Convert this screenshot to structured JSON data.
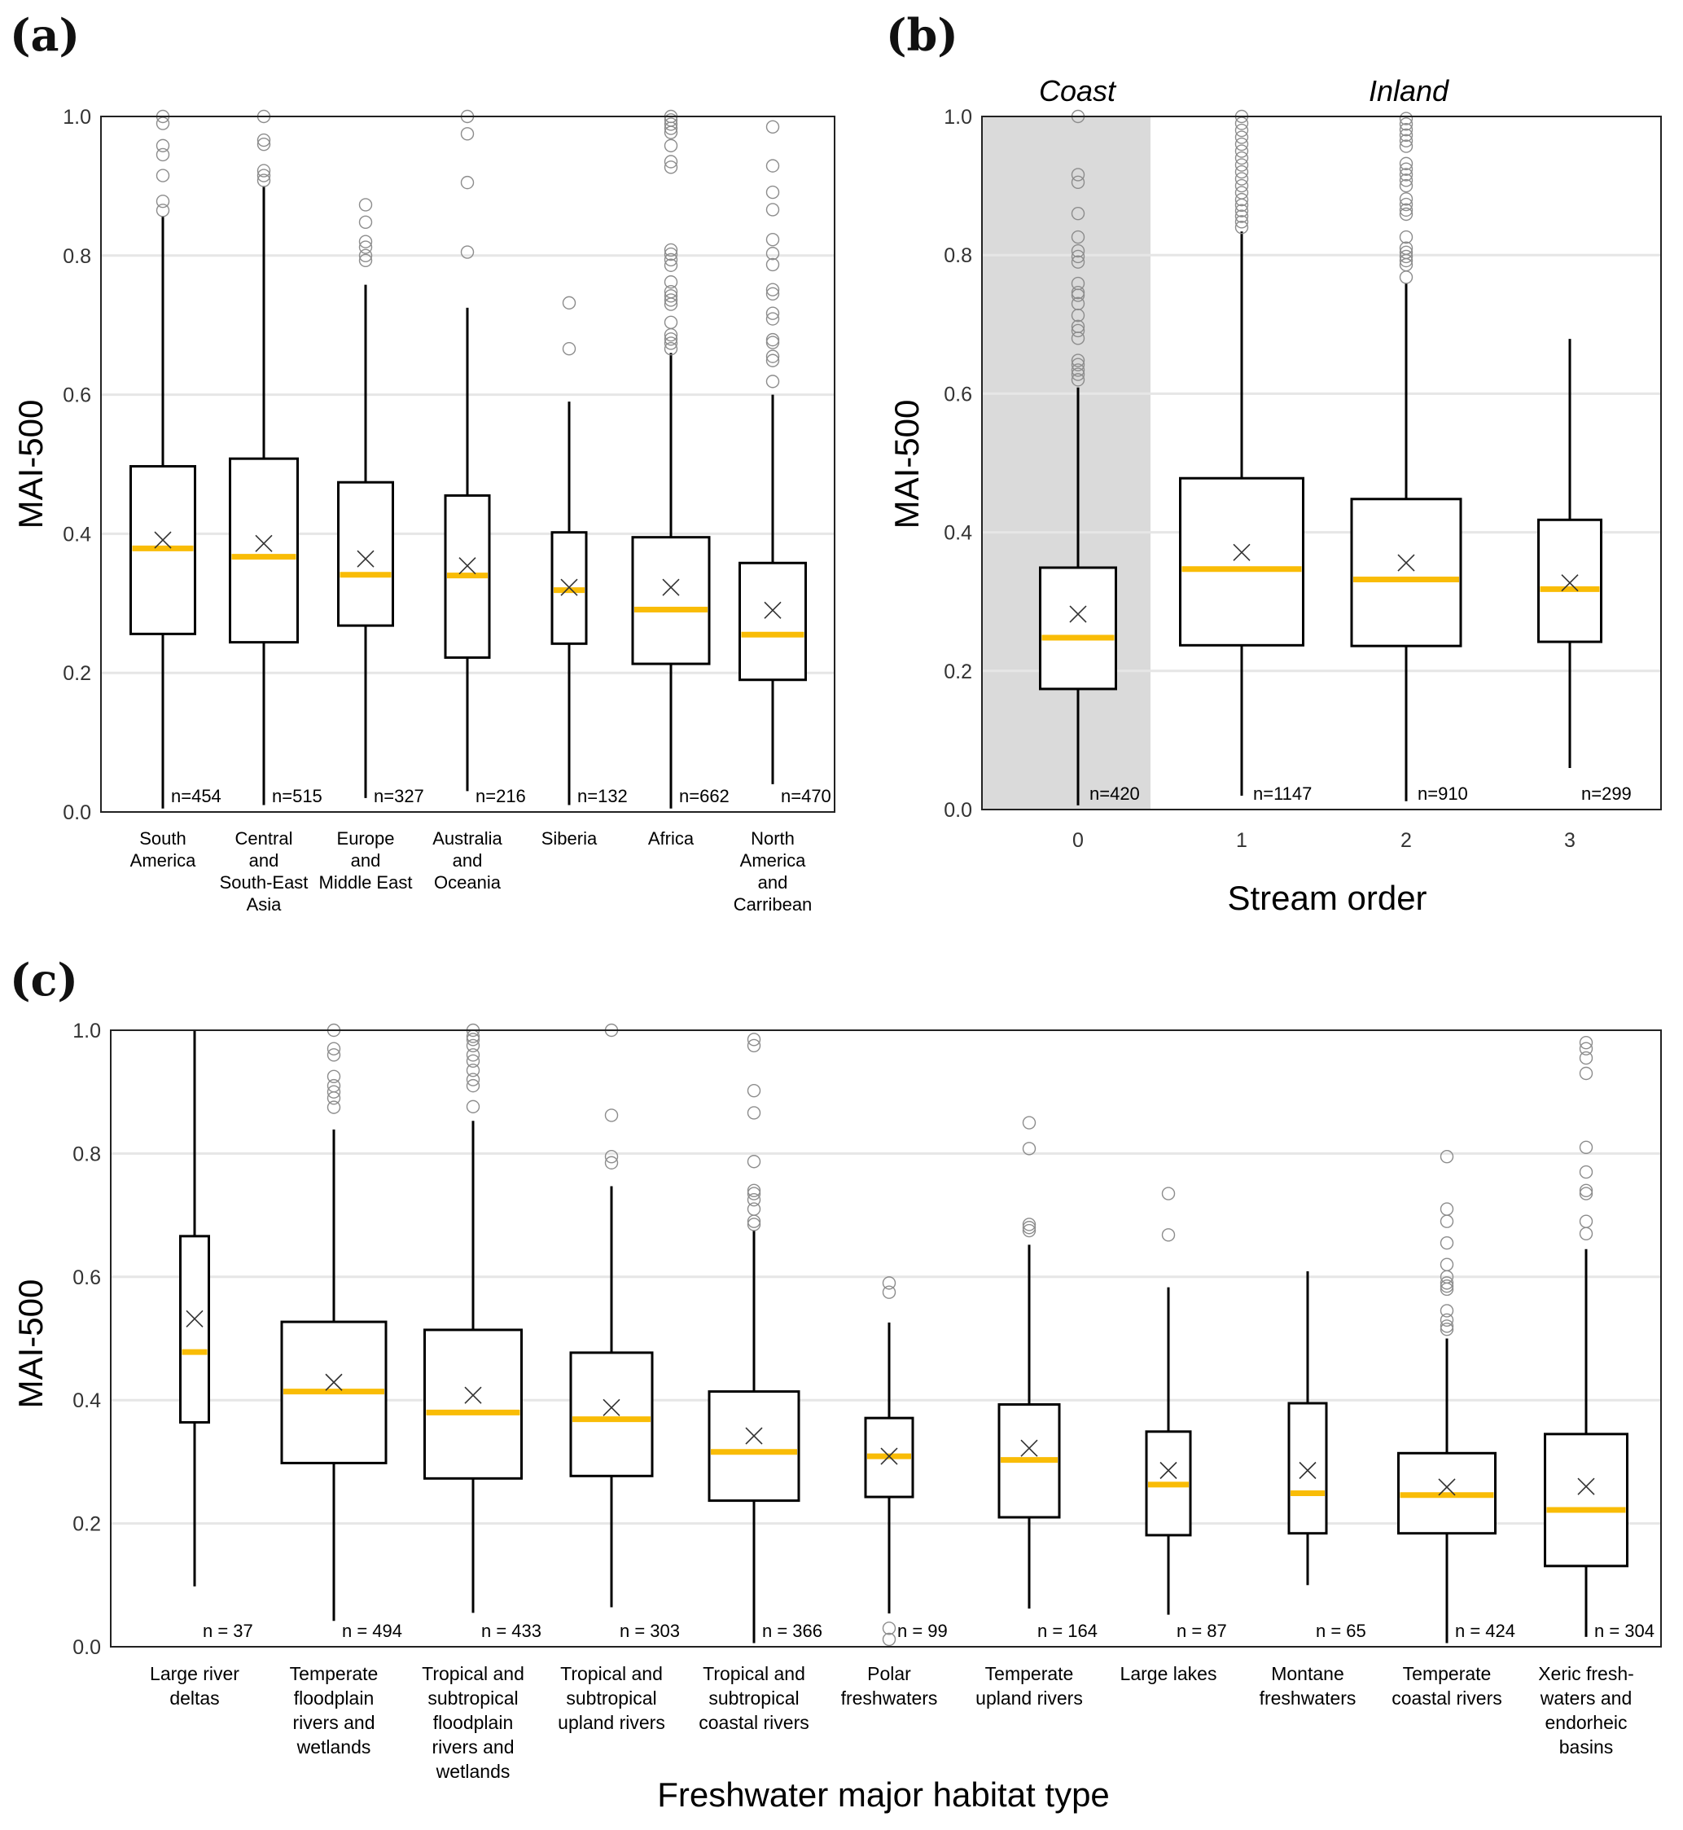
{
  "colors": {
    "median": "#F9BC06",
    "box": "#000000",
    "outlier": "#8c8c8c",
    "grid": "#e6e6e6",
    "coast_shade": "#dadada",
    "mean_marker": "#333333"
  },
  "chart_data": [
    {
      "panel": "(a)",
      "type": "box",
      "title": "",
      "ylabel": "MAI-500",
      "xlabel": "",
      "ylim": [
        0,
        1.0
      ],
      "yticks": [
        "0.0",
        "0.2",
        "0.4",
        "0.6",
        "0.8",
        "1.0"
      ],
      "grid": "horizontal",
      "categories": [
        {
          "label": [
            "South",
            "America"
          ],
          "n": "n=454",
          "q1": 0.256,
          "median": 0.379,
          "q3": 0.497,
          "mean": 0.391,
          "whisker_low": 0.005,
          "whisker_high": 0.857,
          "outliers": [
            0.865,
            0.878,
            0.915,
            0.945,
            0.958,
            0.99,
            1.0
          ]
        },
        {
          "label": [
            "Central",
            "and",
            "South-East",
            "Asia"
          ],
          "n": "n=515",
          "q1": 0.244,
          "median": 0.367,
          "q3": 0.508,
          "mean": 0.386,
          "whisker_low": 0.01,
          "whisker_high": 0.9,
          "outliers": [
            0.908,
            0.915,
            0.922,
            0.96,
            0.966,
            1.0
          ]
        },
        {
          "label": [
            "Europe",
            "and",
            "Middle East"
          ],
          "n": "n=327",
          "q1": 0.268,
          "median": 0.341,
          "q3": 0.474,
          "mean": 0.364,
          "whisker_low": 0.02,
          "whisker_high": 0.758,
          "outliers": [
            0.793,
            0.8,
            0.812,
            0.82,
            0.848,
            0.873
          ]
        },
        {
          "label": [
            "Australia",
            "and",
            "Oceania"
          ],
          "n": "n=216",
          "q1": 0.222,
          "median": 0.34,
          "q3": 0.455,
          "mean": 0.354,
          "whisker_low": 0.03,
          "whisker_high": 0.725,
          "outliers": [
            0.805,
            0.905,
            0.975,
            1.0
          ]
        },
        {
          "label": [
            "Siberia"
          ],
          "n": "n=132",
          "q1": 0.242,
          "median": 0.319,
          "q3": 0.402,
          "mean": 0.323,
          "whisker_low": 0.01,
          "whisker_high": 0.59,
          "outliers": [
            0.666,
            0.732
          ]
        },
        {
          "label": [
            "Africa"
          ],
          "n": "n=662",
          "q1": 0.213,
          "median": 0.291,
          "q3": 0.395,
          "mean": 0.323,
          "whisker_low": 0.005,
          "whisker_high": 0.66,
          "outliers": [
            0.666,
            0.674,
            0.68,
            0.686,
            0.704,
            0.73,
            0.736,
            0.742,
            0.748,
            0.762,
            0.786,
            0.794,
            0.802,
            0.808,
            0.927,
            0.935,
            0.958,
            0.977,
            0.983,
            0.989,
            0.995,
            1.0
          ]
        },
        {
          "label": [
            "North",
            "America",
            "and",
            "Carribean"
          ],
          "n": "n=470",
          "q1": 0.19,
          "median": 0.255,
          "q3": 0.358,
          "mean": 0.29,
          "whisker_low": 0.04,
          "whisker_high": 0.6,
          "outliers": [
            0.619,
            0.649,
            0.655,
            0.675,
            0.679,
            0.709,
            0.717,
            0.745,
            0.751,
            0.787,
            0.803,
            0.823,
            0.866,
            0.891,
            0.929,
            0.985
          ]
        }
      ]
    },
    {
      "panel": "(b)",
      "type": "box",
      "title": "",
      "ylabel": "MAI-500",
      "xlabel": "Stream order",
      "ylim": [
        0,
        1.0
      ],
      "yticks": [
        "0.0",
        "0.2",
        "0.4",
        "0.6",
        "0.8",
        "1.0"
      ],
      "grid": "horizontal",
      "annotations": {
        "shaded_region_label": "Coast",
        "unshaded_region_label": "Inland",
        "shaded_categories": [
          "0"
        ]
      },
      "categories": [
        {
          "label": [
            "0"
          ],
          "n": "n=420",
          "q1": 0.174,
          "median": 0.248,
          "q3": 0.349,
          "mean": 0.282,
          "whisker_low": 0.006,
          "whisker_high": 0.609,
          "outliers": [
            0.62,
            0.628,
            0.634,
            0.642,
            0.648,
            0.68,
            0.691,
            0.697,
            0.713,
            0.73,
            0.742,
            0.746,
            0.759,
            0.79,
            0.798,
            0.806,
            0.826,
            0.86,
            0.905,
            0.916,
            1.0
          ]
        },
        {
          "label": [
            "1"
          ],
          "n": "n=1147",
          "q1": 0.237,
          "median": 0.347,
          "q3": 0.478,
          "mean": 0.371,
          "whisker_low": 0.02,
          "whisker_high": 0.834,
          "outliers": [
            0.84,
            0.848,
            0.856,
            0.864,
            0.872,
            0.88,
            0.89,
            0.9,
            0.91,
            0.92,
            0.93,
            0.94,
            0.95,
            0.96,
            0.97,
            0.98,
            0.99,
            1.0
          ]
        },
        {
          "label": [
            "2"
          ],
          "n": "n=910",
          "q1": 0.236,
          "median": 0.332,
          "q3": 0.448,
          "mean": 0.356,
          "whisker_low": 0.012,
          "whisker_high": 0.759,
          "outliers": [
            0.768,
            0.786,
            0.792,
            0.798,
            0.804,
            0.81,
            0.826,
            0.859,
            0.865,
            0.873,
            0.881,
            0.9,
            0.908,
            0.916,
            0.924,
            0.932,
            0.957,
            0.965,
            0.973,
            0.981,
            0.989,
            0.997
          ]
        },
        {
          "label": [
            "3"
          ],
          "n": "n=299",
          "q1": 0.242,
          "median": 0.318,
          "q3": 0.418,
          "mean": 0.327,
          "whisker_low": 0.06,
          "whisker_high": 0.679,
          "outliers": []
        }
      ]
    },
    {
      "panel": "(c)",
      "type": "box",
      "title": "",
      "ylabel": "MAI-500",
      "xlabel": "Freshwater major habitat type",
      "ylim": [
        0,
        1.0
      ],
      "yticks": [
        "0.0",
        "0.2",
        "0.4",
        "0.6",
        "0.8",
        "1.0"
      ],
      "grid": "horizontal",
      "categories": [
        {
          "label": [
            "Large river",
            "deltas"
          ],
          "n": "n = 37",
          "q1": 0.364,
          "median": 0.478,
          "q3": 0.666,
          "mean": 0.532,
          "whisker_low": 0.098,
          "whisker_high": 1.0,
          "outliers": []
        },
        {
          "label": [
            "Temperate",
            "floodplain",
            "rivers and",
            "wetlands"
          ],
          "n": "n = 494",
          "q1": 0.298,
          "median": 0.414,
          "q3": 0.527,
          "mean": 0.429,
          "whisker_low": 0.042,
          "whisker_high": 0.839,
          "outliers": [
            0.875,
            0.89,
            0.9,
            0.91,
            0.925,
            0.96,
            0.97,
            1.0
          ]
        },
        {
          "label": [
            "Tropical and",
            "subtropical",
            "floodplain",
            "rivers and",
            "wetlands"
          ],
          "n": "n = 433",
          "q1": 0.273,
          "median": 0.38,
          "q3": 0.514,
          "mean": 0.408,
          "whisker_low": 0.055,
          "whisker_high": 0.853,
          "outliers": [
            0.876,
            0.91,
            0.92,
            0.935,
            0.95,
            0.96,
            0.975,
            0.985,
            0.99,
            1.0
          ]
        },
        {
          "label": [
            "Tropical and",
            "subtropical",
            "upland rivers"
          ],
          "n": "n = 303",
          "q1": 0.277,
          "median": 0.369,
          "q3": 0.477,
          "mean": 0.388,
          "whisker_low": 0.064,
          "whisker_high": 0.747,
          "outliers": [
            0.785,
            0.795,
            0.862,
            1.0
          ]
        },
        {
          "label": [
            "Tropical and",
            "subtropical",
            "coastal rivers"
          ],
          "n": "n = 366",
          "q1": 0.237,
          "median": 0.316,
          "q3": 0.414,
          "mean": 0.342,
          "whisker_low": 0.006,
          "whisker_high": 0.675,
          "outliers": [
            0.685,
            0.69,
            0.71,
            0.725,
            0.735,
            0.74,
            0.787,
            0.866,
            0.902,
            0.975,
            0.985
          ]
        },
        {
          "label": [
            "Polar",
            "freshwaters"
          ],
          "n": "n = 99",
          "q1": 0.243,
          "median": 0.309,
          "q3": 0.371,
          "mean": 0.309,
          "whisker_low": 0.054,
          "whisker_high": 0.526,
          "outliers": [
            0.012,
            0.03,
            0.575,
            0.59
          ]
        },
        {
          "label": [
            "Temperate",
            "upland rivers"
          ],
          "n": "n = 164",
          "q1": 0.21,
          "median": 0.303,
          "q3": 0.393,
          "mean": 0.322,
          "whisker_low": 0.062,
          "whisker_high": 0.652,
          "outliers": [
            0.675,
            0.68,
            0.685,
            0.808,
            0.85
          ]
        },
        {
          "label": [
            "Large lakes"
          ],
          "n": "n = 87",
          "q1": 0.181,
          "median": 0.263,
          "q3": 0.349,
          "mean": 0.286,
          "whisker_low": 0.052,
          "whisker_high": 0.583,
          "outliers": [
            0.668,
            0.735
          ]
        },
        {
          "label": [
            "Montane",
            "freshwaters"
          ],
          "n": "n = 65",
          "q1": 0.184,
          "median": 0.249,
          "q3": 0.395,
          "mean": 0.286,
          "whisker_low": 0.1,
          "whisker_high": 0.609,
          "outliers": []
        },
        {
          "label": [
            "Temperate",
            "coastal rivers"
          ],
          "n": "n = 424",
          "q1": 0.184,
          "median": 0.246,
          "q3": 0.314,
          "mean": 0.259,
          "whisker_low": 0.006,
          "whisker_high": 0.5,
          "outliers": [
            0.515,
            0.52,
            0.53,
            0.545,
            0.58,
            0.585,
            0.59,
            0.6,
            0.62,
            0.655,
            0.69,
            0.71,
            0.795
          ]
        },
        {
          "label": [
            "Xeric fresh-",
            "waters and",
            "endorheic",
            "basins"
          ],
          "n": "n = 304",
          "q1": 0.131,
          "median": 0.222,
          "q3": 0.345,
          "mean": 0.26,
          "whisker_low": 0.016,
          "whisker_high": 0.645,
          "outliers": [
            0.67,
            0.69,
            0.735,
            0.74,
            0.77,
            0.81,
            0.93,
            0.955,
            0.97,
            0.98
          ]
        }
      ]
    }
  ]
}
